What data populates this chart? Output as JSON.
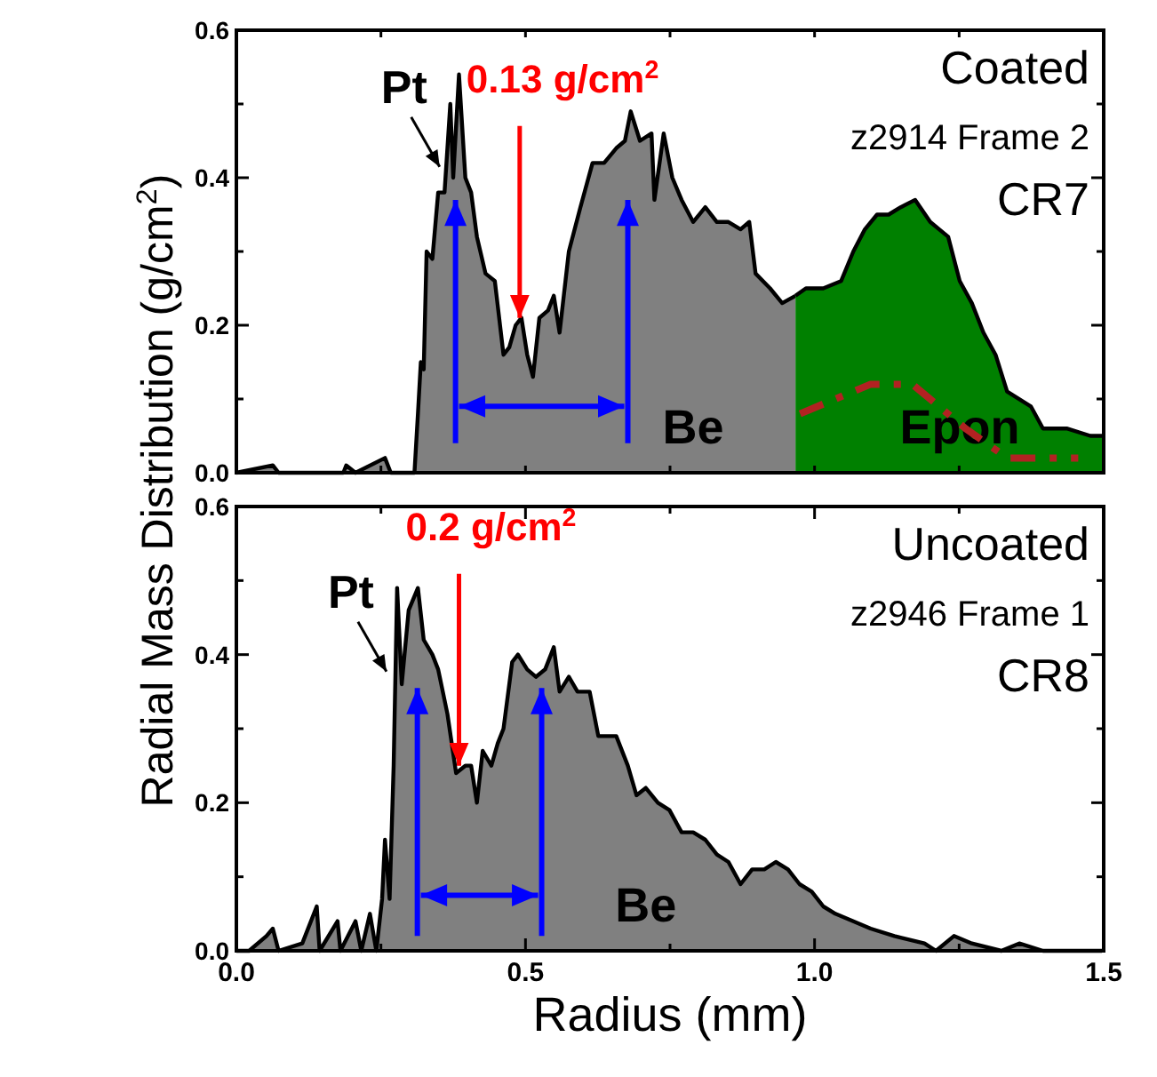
{
  "chart_data": [
    {
      "type": "area",
      "ylabel": "Radial Mass Distribution (g/cm$^{2}$)",
      "xlim": [
        0,
        1.5
      ],
      "ylim": [
        0,
        0.6
      ],
      "xticks": [
        {
          "value": 0,
          "label": null
        },
        {
          "value": 0.25,
          "label": null
        },
        {
          "value": 0.5,
          "label": null
        },
        {
          "value": 0.75,
          "label": null
        },
        {
          "value": 1,
          "label": null
        },
        {
          "value": 1.25,
          "label": null
        },
        {
          "value": 1.5,
          "label": null
        }
      ],
      "yticks": [
        {
          "value": 0,
          "label": "0.0"
        },
        {
          "value": 0.1,
          "label": null
        },
        {
          "value": 0.2,
          "label": "0.2"
        },
        {
          "value": 0.3,
          "label": null
        },
        {
          "value": 0.4,
          "label": "0.4"
        },
        {
          "value": 0.5,
          "label": null
        },
        {
          "value": 0.6,
          "label": "0.6"
        }
      ],
      "tick_labels": "y",
      "annotations": [
        "Pt",
        {
          "text": "0.13 g/cm$^{2}$",
          "x": 0.49,
          "y": 0.21
        },
        "Coated",
        "z2914 Frame 2",
        "CR7"
      ],
      "series": [
        {
          "name": "Be",
          "color": "#808080",
          "x": [
            0,
            0.063,
            0.073,
            0.185,
            0.19,
            0.206,
            0.257,
            0.267,
            0.308,
            0.314,
            0.319,
            0.324,
            0.329,
            0.339,
            0.349,
            0.36,
            0.37,
            0.375,
            0.385,
            0.396,
            0.406,
            0.416,
            0.431,
            0.447,
            0.462,
            0.472,
            0.483,
            0.493,
            0.503,
            0.513,
            0.524,
            0.539,
            0.549,
            0.559,
            0.575,
            0.595,
            0.616,
            0.636,
            0.657,
            0.672,
            0.682,
            0.698,
            0.718,
            0.723,
            0.739,
            0.754,
            0.77,
            0.79,
            0.811,
            0.831,
            0.851,
            0.872,
            0.887,
            0.898,
            0.923,
            0.944,
            0.967
          ],
          "values": [
            0,
            0.01,
            0,
            0,
            0.01,
            0,
            0.02,
            0,
            0,
            0.08,
            0.15,
            0.14,
            0.3,
            0.29,
            0.38,
            0.38,
            0.5,
            0.4,
            0.54,
            0.4,
            0.38,
            0.32,
            0.27,
            0.26,
            0.16,
            0.17,
            0.2,
            0.21,
            0.16,
            0.13,
            0.21,
            0.22,
            0.24,
            0.19,
            0.3,
            0.36,
            0.42,
            0.42,
            0.44,
            0.45,
            0.49,
            0.45,
            0.46,
            0.37,
            0.46,
            0.4,
            0.37,
            0.34,
            0.36,
            0.34,
            0.34,
            0.33,
            0.34,
            0.27,
            0.25,
            0.23,
            0.24
          ]
        },
        {
          "name": "Epon",
          "color": "#008000",
          "x": [
            0.967,
            0.985,
            1.015,
            1.046,
            1.067,
            1.087,
            1.108,
            1.128,
            1.149,
            1.174,
            1.2,
            1.231,
            1.251,
            1.272,
            1.292,
            1.313,
            1.333,
            1.374,
            1.395,
            1.436,
            1.477,
            1.497
          ],
          "values": [
            0.24,
            0.25,
            0.25,
            0.26,
            0.3,
            0.33,
            0.35,
            0.35,
            0.36,
            0.37,
            0.34,
            0.32,
            0.26,
            0.23,
            0.19,
            0.16,
            0.11,
            0.09,
            0.06,
            0.06,
            0.05,
            0.05
          ]
        },
        {
          "type": "line",
          "color": "#b22222",
          "line_style": "dashed",
          "x": [
            0.975,
            1.097,
            1.169,
            1.261,
            1.333,
            1.456
          ],
          "values": [
            0.08,
            0.12,
            0.12,
            0.06,
            0.02,
            0.02
          ]
        }
      ]
    },
    {
      "type": "area",
      "xlabel": "Radius (mm)",
      "xlim": [
        0,
        1.5
      ],
      "ylim": [
        0,
        0.6
      ],
      "xticks": [
        {
          "value": 0,
          "label": "0.0"
        },
        {
          "value": 0.25,
          "label": null
        },
        {
          "value": 0.5,
          "label": "0.5"
        },
        {
          "value": 0.75,
          "label": null
        },
        {
          "value": 1,
          "label": "1.0"
        },
        {
          "value": 1.25,
          "label": null
        },
        {
          "value": 1.5,
          "label": "1.5"
        }
      ],
      "yticks": [
        {
          "value": 0,
          "label": "0.0"
        },
        {
          "value": 0.1,
          "label": null
        },
        {
          "value": 0.2,
          "label": "0.2"
        },
        {
          "value": 0.3,
          "label": null
        },
        {
          "value": 0.4,
          "label": "0.4"
        },
        {
          "value": 0.5,
          "label": null
        },
        {
          "value": 0.6,
          "label": "0.6"
        }
      ],
      "annotations": [
        "Pt",
        {
          "text": "0.2 g/cm$^{2}$",
          "x": 0.385,
          "y": 0.25
        },
        "Uncoated",
        "z2946 Frame 1",
        "CR8"
      ],
      "series": [
        {
          "name": "Be",
          "color": "#808080",
          "x": [
            0,
            0.022,
            0.052,
            0.063,
            0.073,
            0.114,
            0.139,
            0.144,
            0.175,
            0.18,
            0.206,
            0.216,
            0.231,
            0.242,
            0.252,
            0.257,
            0.265,
            0.272,
            0.278,
            0.286,
            0.298,
            0.314,
            0.324,
            0.339,
            0.349,
            0.365,
            0.38,
            0.396,
            0.406,
            0.416,
            0.426,
            0.441,
            0.452,
            0.462,
            0.477,
            0.487,
            0.503,
            0.518,
            0.534,
            0.549,
            0.559,
            0.575,
            0.59,
            0.611,
            0.626,
            0.641,
            0.657,
            0.677,
            0.692,
            0.708,
            0.729,
            0.749,
            0.77,
            0.79,
            0.811,
            0.831,
            0.851,
            0.872,
            0.892,
            0.913,
            0.933,
            0.954,
            0.974,
            0.995,
            1.015,
            1.036,
            1.067,
            1.097,
            1.138,
            1.19,
            1.21,
            1.241,
            1.272,
            1.323,
            1.354,
            1.395,
            1.436,
            1.497
          ],
          "values": [
            0,
            0,
            0.02,
            0.03,
            0,
            0.01,
            0.06,
            0,
            0.04,
            0,
            0.04,
            0,
            0.05,
            0,
            0.07,
            0.15,
            0.07,
            0.25,
            0.49,
            0.36,
            0.46,
            0.49,
            0.42,
            0.4,
            0.38,
            0.32,
            0.24,
            0.25,
            0.25,
            0.2,
            0.27,
            0.25,
            0.28,
            0.3,
            0.39,
            0.4,
            0.38,
            0.37,
            0.38,
            0.41,
            0.35,
            0.37,
            0.35,
            0.35,
            0.29,
            0.29,
            0.29,
            0.25,
            0.21,
            0.22,
            0.2,
            0.19,
            0.16,
            0.16,
            0.15,
            0.13,
            0.12,
            0.09,
            0.11,
            0.11,
            0.12,
            0.11,
            0.09,
            0.08,
            0.06,
            0.05,
            0.04,
            0.03,
            0.02,
            0.01,
            0,
            0.02,
            0.01,
            0,
            0.01,
            0,
            0,
            0
          ]
        }
      ]
    }
  ]
}
